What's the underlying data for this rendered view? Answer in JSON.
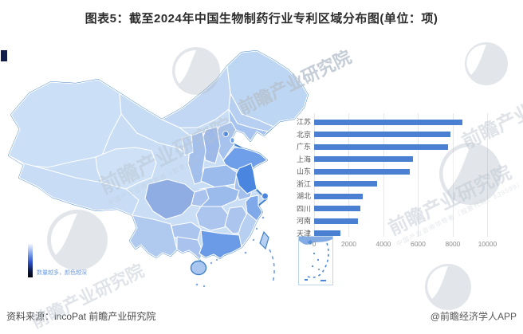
{
  "title": "图表5：截至2024年中国生物制药行业专利区域分布图(单位：项)",
  "chart_data": {
    "type": "bar",
    "orientation": "horizontal",
    "title": "截至2024年中国生物制药行业专利区域分布(单位：项)",
    "categories": [
      "江苏",
      "北京",
      "广东",
      "上海",
      "山东",
      "浙江",
      "湖北",
      "四川",
      "河南",
      "天津"
    ],
    "values": [
      8550,
      7850,
      7750,
      5700,
      5510,
      3620,
      2820,
      2670,
      2550,
      1530
    ],
    "xlabel": "",
    "ylabel": "",
    "xlim": [
      0,
      10000
    ],
    "xticks": [
      0,
      2000,
      4000,
      6000,
      8000,
      10000
    ],
    "grid": "vertical",
    "bar_color": "#4a80d1",
    "legend_position": "none"
  },
  "map": {
    "legend_text": "数量越多，颜色越深",
    "border_color": "#4181c8",
    "base_fill": "#c9def5",
    "regions": {
      "xinjiang": "#cbdff6",
      "tibet": "#c8ddf5",
      "qinghai": "#cfe1f6",
      "inner-mongolia": "#c2d7f3",
      "gansu": "#c6dbf4",
      "heilongjiang": "#bdd6f3",
      "jilin": "#b7d0f2",
      "liaoning": "#a6c4ef",
      "hebei": "#a6c2ef",
      "beijing": "#4a86e0",
      "tianjin": "#74a1e8",
      "shanxi": "#9db9ea",
      "shaanxi": "#a3bfec",
      "ningxia": "#bdd5f2",
      "shandong": "#6f9fe8",
      "henan": "#9cbbed",
      "anhui": "#a3bfee",
      "jiangsu": "#4a86e0",
      "shanghai": "#4a86e0",
      "zhejiang": "#7fa9e9",
      "hubei": "#9cbbed",
      "sichuan": "#8fade3",
      "chongqing": "#a9c3ee",
      "guizhou": "#abc5ef",
      "yunnan": "#b0c9ef",
      "hunan": "#abc5ef",
      "jiangxi": "#abc5ef",
      "fujian": "#b7d0f2",
      "guangxi": "#a9c3ee",
      "guangdong": "#6b9be7",
      "hainan": "#aac6ee",
      "taiwan": "#b7d0f2"
    }
  },
  "footer": {
    "source": "资料来源：incoPat 前瞻产业研究院",
    "credit": "@前瞻经济学人APP"
  },
  "watermark": {
    "text": "前瞻产业研究院",
    "subtext": "中国产业咨询领导者（股票代码：839599）"
  }
}
